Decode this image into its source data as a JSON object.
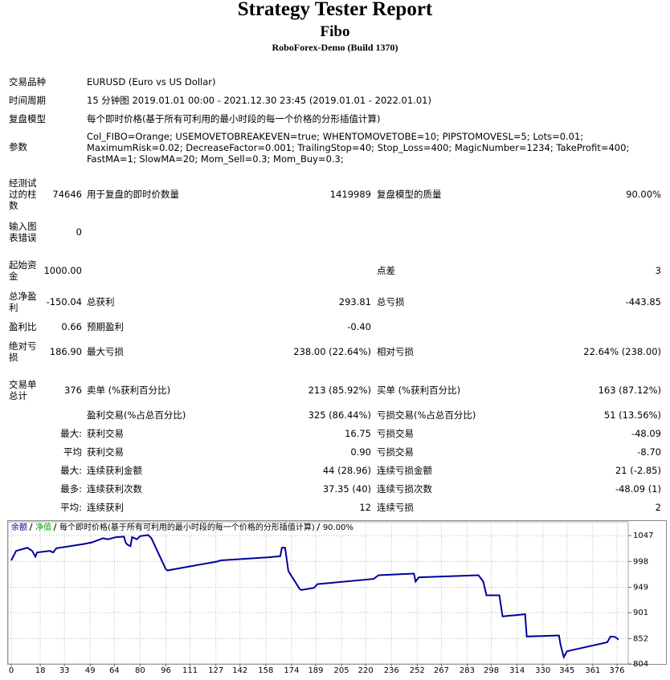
{
  "header": {
    "title": "Strategy Tester Report",
    "subtitle": "Fibo",
    "build": "RoboForex-Demo (Build 1370)"
  },
  "info": [
    {
      "label": "交易品种",
      "value": "EURUSD (Euro vs US Dollar)"
    },
    {
      "label": "时间周期",
      "value": "15 分钟图 2019.01.01 00:00 - 2021.12.30 23:45 (2019.01.01 - 2022.01.01)"
    },
    {
      "label": "复盘模型",
      "value": "每个即时价格(基于所有可利用的最小时段的每一个价格的分形插值计算)"
    },
    {
      "label": "参数",
      "value": "Col_FIBO=Orange; USEMOVETOBREAKEVEN=true; WHENTOMOVETOBE=10; PIPSTOMOVESL=5; Lots=0.01; MaximumRisk=0.02; DecreaseFactor=0.001; TrailingStop=40; Stop_Loss=400; MagicNumber=1234; TakeProfit=400; FastMA=1; SlowMA=20; Mom_Sell=0.3; Mom_Buy=0.3;"
    }
  ],
  "stats": [
    {
      "label": "经测试过的柱数",
      "value": "74646",
      "label2": "用于复盘的即时价数量",
      "value2": "1419989",
      "label3": "复盘模型的质量",
      "value3": "90.00%"
    },
    {
      "label": "输入图表错误",
      "value": "0"
    },
    {
      "label": "起始资金",
      "value": "1000.00",
      "label3": "点差",
      "value3": "3"
    },
    {
      "label": "总净盈利",
      "value": "-150.04",
      "label2": "总获利",
      "value2": "293.81",
      "label3": "总亏损",
      "value3": "-443.85"
    },
    {
      "label": "盈利比",
      "value": "0.66",
      "label2": "预期盈利",
      "value2": "-0.40"
    },
    {
      "label": "绝对亏损",
      "value": "186.90",
      "label2": "最大亏损",
      "value2": "238.00 (22.64%)",
      "label3": "相对亏损",
      "value3": "22.64% (238.00)"
    },
    {
      "label": "交易单总计",
      "value": "376",
      "label2": "卖单 (%获利百分比)",
      "value2": "213 (85.92%)",
      "label3": "买单 (%获利百分比)",
      "value3": "163 (87.12%)"
    },
    {
      "label2": "盈利交易(%占总百分比)",
      "value2": "325 (86.44%)",
      "label3": "亏损交易(%占总百分比)",
      "value3": "51 (13.56%)"
    },
    {
      "value": "最大:",
      "label2": "获利交易",
      "value2": "16.75",
      "label3": "亏损交易",
      "value3": "-48.09"
    },
    {
      "value": "平均",
      "label2": "获利交易",
      "value2": "0.90",
      "label3": "亏损交易",
      "value3": "-8.70"
    },
    {
      "value": "最大:",
      "label2": "连续获利金额",
      "value2": "44 (28.96)",
      "label3": "连续亏损金额",
      "value3": "21 (-2.85)"
    },
    {
      "value": "最多:",
      "label2": "连续获利次数",
      "value2": "37.35 (40)",
      "label3": "连续亏损次数",
      "value3": "-48.09 (1)"
    },
    {
      "value": "平均:",
      "label2": "连续获利",
      "value2": "12",
      "label3": "连续亏损",
      "value3": "2"
    }
  ],
  "chart_data": {
    "type": "line",
    "series": [
      {
        "name": "余额",
        "color": "#00009c",
        "x": [
          0,
          3,
          10,
          13,
          15,
          16,
          24,
          26,
          28,
          45,
          50,
          57,
          60,
          65,
          70,
          71,
          72,
          74,
          75,
          78,
          80,
          85,
          87,
          96,
          97,
          128,
          130,
          160,
          167,
          168,
          170,
          172,
          179,
          180,
          188,
          190,
          225,
          228,
          250,
          251,
          253,
          290,
          293,
          295,
          303,
          305,
          319,
          320,
          340,
          341,
          343,
          345,
          370,
          372,
          375,
          377
        ],
        "values": [
          1000,
          1018,
          1024,
          1018,
          1007,
          1015,
          1018,
          1015,
          1023,
          1031,
          1034,
          1042,
          1040,
          1044,
          1045,
          1034,
          1030,
          1027,
          1044,
          1040,
          1046,
          1048,
          1042,
          983,
          981,
          998,
          1000,
          1006,
          1008,
          1024,
          1024,
          980,
          946,
          944,
          948,
          955,
          965,
          972,
          975,
          960,
          968,
          972,
          960,
          934,
          934,
          894,
          898,
          856,
          858,
          840,
          817,
          828,
          845,
          856,
          855,
          850
        ]
      }
    ],
    "equity_label": "净值",
    "equity_color": "#00a000",
    "model_note": "每个即时价格(基于所有可利用的最小时段的每一个价格的分形插值计算)",
    "quality": "90.00%",
    "xlim": [
      -2,
      383
    ],
    "xticks": [
      0,
      18,
      33,
      49,
      64,
      80,
      96,
      111,
      127,
      142,
      158,
      174,
      189,
      205,
      220,
      236,
      252,
      267,
      283,
      298,
      314,
      330,
      345,
      361,
      376
    ],
    "ylim": [
      804,
      1073
    ],
    "yticks": [
      804,
      852,
      901,
      949,
      998,
      1047
    ],
    "grid": true
  }
}
